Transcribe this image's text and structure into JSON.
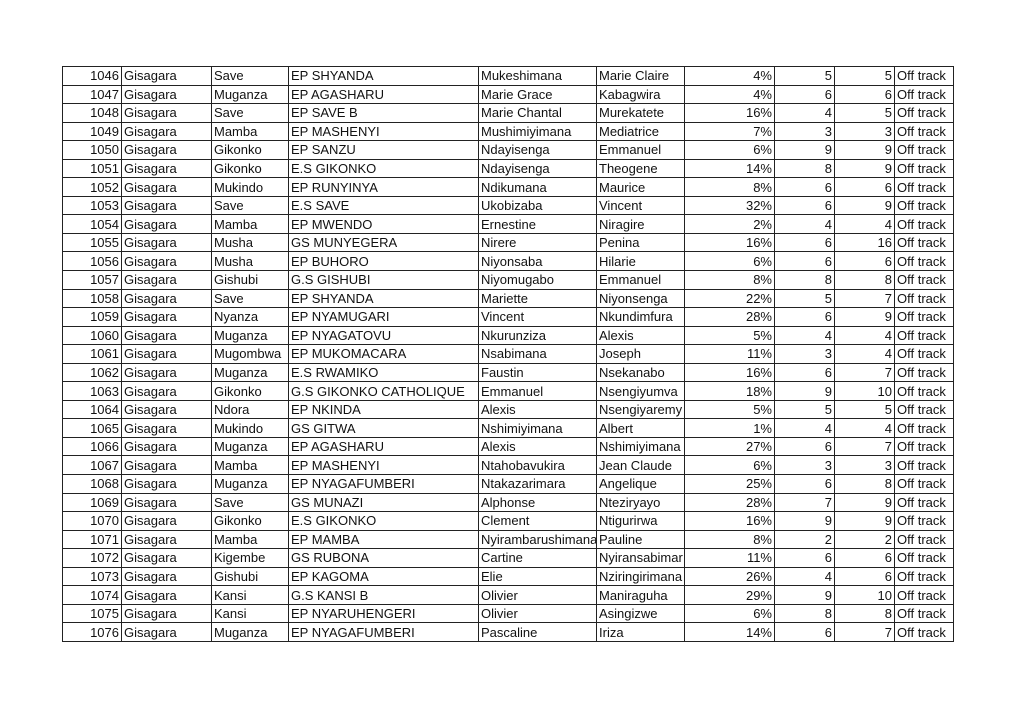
{
  "rows": [
    [
      "1046",
      "Gisagara",
      "Save",
      "EP SHYANDA",
      "Mukeshimana",
      "Marie Claire",
      "4%",
      "5",
      "5",
      "Off track"
    ],
    [
      "1047",
      "Gisagara",
      "Muganza",
      "EP AGASHARU",
      "Marie Grace",
      "Kabagwira",
      "4%",
      "6",
      "6",
      "Off track"
    ],
    [
      "1048",
      "Gisagara",
      "Save",
      "EP SAVE B",
      "Marie Chantal",
      "Murekatete",
      "16%",
      "4",
      "5",
      "Off track"
    ],
    [
      "1049",
      "Gisagara",
      "Mamba",
      "EP MASHENYI",
      "Mushimiyimana",
      "Mediatrice",
      "7%",
      "3",
      "3",
      "Off track"
    ],
    [
      "1050",
      "Gisagara",
      "Gikonko",
      "EP SANZU",
      "Ndayisenga",
      "Emmanuel",
      "6%",
      "9",
      "9",
      "Off track"
    ],
    [
      "1051",
      "Gisagara",
      "Gikonko",
      "E.S GIKONKO",
      "Ndayisenga",
      "Theogene",
      "14%",
      "8",
      "9",
      "Off track"
    ],
    [
      "1052",
      "Gisagara",
      "Mukindo",
      "EP RUNYINYA",
      "Ndikumana",
      "Maurice",
      "8%",
      "6",
      "6",
      "Off track"
    ],
    [
      "1053",
      "Gisagara",
      "Save",
      "E.S SAVE",
      "Ukobizaba",
      "Vincent",
      "32%",
      "6",
      "9",
      "Off track"
    ],
    [
      "1054",
      "Gisagara",
      "Mamba",
      "EP MWENDO",
      "Ernestine",
      "Niragire",
      "2%",
      "4",
      "4",
      "Off track"
    ],
    [
      "1055",
      "Gisagara",
      "Musha",
      "GS MUNYEGERA",
      "Nirere",
      "Penina",
      "16%",
      "6",
      "16",
      "Off track"
    ],
    [
      "1056",
      "Gisagara",
      "Musha",
      "EP BUHORO",
      "Niyonsaba",
      "Hilarie",
      "6%",
      "6",
      "6",
      "Off track"
    ],
    [
      "1057",
      "Gisagara",
      "Gishubi",
      "G.S GISHUBI",
      "Niyomugabo",
      "Emmanuel",
      "8%",
      "8",
      "8",
      "Off track"
    ],
    [
      "1058",
      "Gisagara",
      "Save",
      "EP SHYANDA",
      "Mariette",
      "Niyonsenga",
      "22%",
      "5",
      "7",
      "Off track"
    ],
    [
      "1059",
      "Gisagara",
      "Nyanza",
      "EP NYAMUGARI",
      "Vincent",
      "Nkundimfura",
      "28%",
      "6",
      "9",
      "Off track"
    ],
    [
      "1060",
      "Gisagara",
      "Muganza",
      "EP NYAGATOVU",
      "Nkurunziza",
      "Alexis",
      "5%",
      "4",
      "4",
      "Off track"
    ],
    [
      "1061",
      "Gisagara",
      "Mugombwa",
      "EP MUKOMACARA",
      "Nsabimana",
      "Joseph",
      "11%",
      "3",
      "4",
      "Off track"
    ],
    [
      "1062",
      "Gisagara",
      "Muganza",
      "E.S RWAMIKO",
      "Faustin",
      "Nsekanabo",
      "16%",
      "6",
      "7",
      "Off track"
    ],
    [
      "1063",
      "Gisagara",
      "Gikonko",
      "G.S GIKONKO CATHOLIQUE",
      "Emmanuel",
      "Nsengiyumva",
      "18%",
      "9",
      "10",
      "Off track"
    ],
    [
      "1064",
      "Gisagara",
      "Ndora",
      "EP NKINDA",
      "Alexis",
      "Nsengiyaremy",
      "5%",
      "5",
      "5",
      "Off track"
    ],
    [
      "1065",
      "Gisagara",
      "Mukindo",
      "GS GITWA",
      "Nshimiyimana",
      "Albert",
      "1%",
      "4",
      "4",
      "Off track"
    ],
    [
      "1066",
      "Gisagara",
      "Muganza",
      "EP AGASHARU",
      "Alexis",
      "Nshimiyimana",
      "27%",
      "6",
      "7",
      "Off track"
    ],
    [
      "1067",
      "Gisagara",
      "Mamba",
      "EP MASHENYI",
      "Ntahobavukira",
      "Jean Claude",
      "6%",
      "3",
      "3",
      "Off track"
    ],
    [
      "1068",
      "Gisagara",
      "Muganza",
      "EP NYAGAFUMBERI",
      "Ntakazarimara",
      "Angelique",
      "25%",
      "6",
      "8",
      "Off track"
    ],
    [
      "1069",
      "Gisagara",
      "Save",
      "GS MUNAZI",
      "Alphonse",
      "Nteziryayo",
      "28%",
      "7",
      "9",
      "Off track"
    ],
    [
      "1070",
      "Gisagara",
      "Gikonko",
      "E.S GIKONKO",
      "Clement",
      "Ntigurirwa",
      "16%",
      "9",
      "9",
      "Off track"
    ],
    [
      "1071",
      "Gisagara",
      "Mamba",
      "EP MAMBA",
      "Nyirambarushimana",
      "Pauline",
      "8%",
      "2",
      "2",
      "Off track"
    ],
    [
      "1072",
      "Gisagara",
      "Kigembe",
      "GS RUBONA",
      "Cartine",
      "Nyiransabimar",
      "11%",
      "6",
      "6",
      "Off track"
    ],
    [
      "1073",
      "Gisagara",
      "Gishubi",
      "EP KAGOMA",
      "Elie",
      "Nziringirimana",
      "26%",
      "4",
      "6",
      "Off track"
    ],
    [
      "1074",
      "Gisagara",
      "Kansi",
      "G.S KANSI B",
      "Olivier",
      "Maniraguha",
      "29%",
      "9",
      "10",
      "Off track"
    ],
    [
      "1075",
      "Gisagara",
      "Kansi",
      "EP NYARUHENGERI",
      "Olivier",
      "Asingizwe",
      "6%",
      "8",
      "8",
      "Off track"
    ],
    [
      "1076",
      "Gisagara",
      "Muganza",
      "EP NYAGAFUMBERI",
      "Pascaline",
      "Iriza",
      "14%",
      "6",
      "7",
      "Off track"
    ]
  ]
}
